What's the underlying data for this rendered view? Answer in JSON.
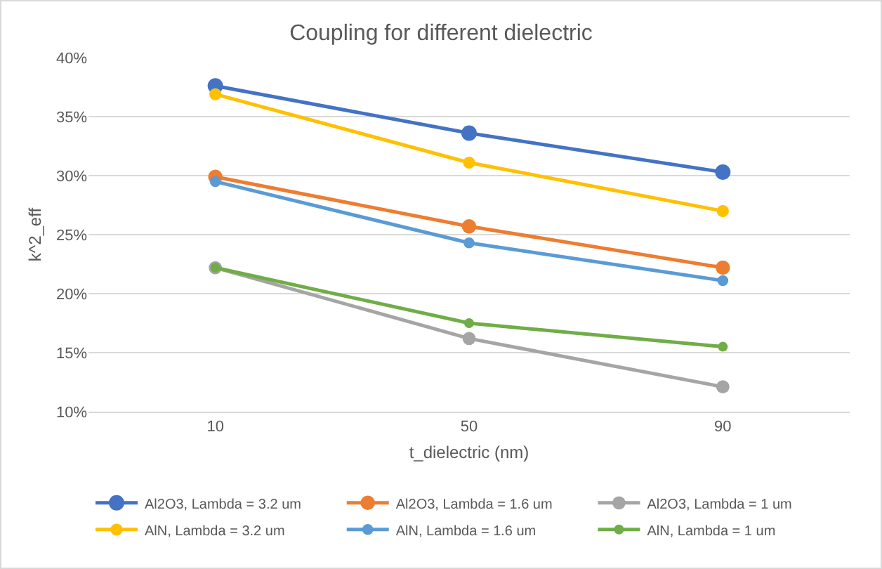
{
  "chart_data": {
    "type": "line",
    "title": "Coupling for different dielectric",
    "xlabel": "t_dielectric (nm)",
    "ylabel": "k^2_eff",
    "categories": [
      "10",
      "50",
      "90"
    ],
    "series": [
      {
        "name": "Al2O3, Lambda = 3.2 um",
        "color": "#4472c4",
        "values": [
          37.6,
          33.6,
          30.3
        ]
      },
      {
        "name": "Al2O3, Lambda = 1.6 um",
        "color": "#ed7d31",
        "values": [
          29.9,
          25.7,
          22.2
        ]
      },
      {
        "name": "Al2O3, Lambda = 1 um",
        "color": "#a5a5a5",
        "values": [
          22.2,
          16.2,
          12.1
        ]
      },
      {
        "name": "AlN, Lambda = 3.2 um",
        "color": "#ffc000",
        "values": [
          36.9,
          31.1,
          27.0
        ]
      },
      {
        "name": "AlN, Lambda = 1.6 um",
        "color": "#5b9bd5",
        "values": [
          29.5,
          24.3,
          21.1
        ]
      },
      {
        "name": "AlN, Lambda = 1 um",
        "color": "#70ad47",
        "values": [
          22.2,
          17.5,
          15.5
        ]
      }
    ],
    "ylim": [
      10,
      40
    ],
    "yticks": [
      {
        "value": 10,
        "label": "10%"
      },
      {
        "value": 15,
        "label": "15%"
      },
      {
        "value": 20,
        "label": "20%"
      },
      {
        "value": 25,
        "label": "25%"
      },
      {
        "value": 30,
        "label": "30%"
      },
      {
        "value": 35,
        "label": "35%"
      },
      {
        "value": 40,
        "label": "40%"
      }
    ],
    "grid": "y",
    "legend": "bottom",
    "marker": "circle",
    "line_style": "solid"
  }
}
